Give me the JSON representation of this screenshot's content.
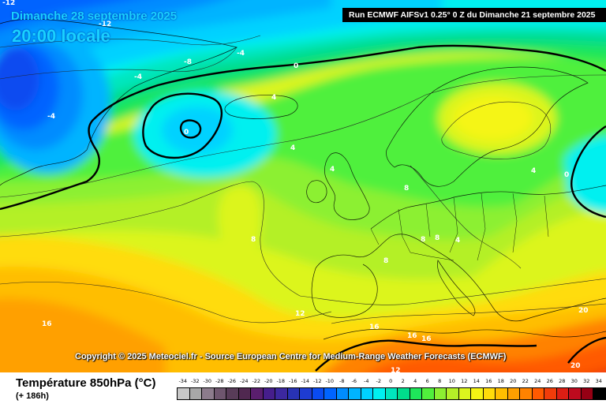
{
  "header": {
    "date": "Dimanche 28 septembre 2025",
    "time": "20:00 locale",
    "run": "Run ECMWF AIFSv1 0.25° 0 Z du Dimanche 21 septembre 2025"
  },
  "copyright": "Copyright © 2025 Meteociel.fr - Source European Centre for Medium-Range Weather Forecasts (ECMWF)",
  "footer": {
    "title": "Température 850hPa (°C)",
    "subtitle": "(+ 186h)"
  },
  "colors": {
    "title_text": "#19d0ff",
    "run_box": "#000000",
    "isotherm_0": "#000000"
  },
  "isotherm_labels": [
    "-12",
    "-12",
    "-8",
    "-4",
    "0",
    "-4",
    "0",
    "-4",
    "4",
    "4",
    "4",
    "8",
    "8",
    "8",
    "8",
    "4",
    "4",
    "0",
    "8",
    "12",
    "16",
    "16",
    "16",
    "16",
    "20",
    "20",
    "12"
  ],
  "legend": {
    "values": [
      "-34",
      "-32",
      "-30",
      "-28",
      "-26",
      "-24",
      "-22",
      "-20",
      "-18",
      "-16",
      "-14",
      "-12",
      "-10",
      "-8",
      "-6",
      "-4",
      "-2",
      "0",
      "2",
      "4",
      "6",
      "8",
      "10",
      "12",
      "14",
      "16",
      "18",
      "20",
      "22",
      "24",
      "26",
      "28",
      "30",
      "32",
      "34"
    ],
    "colors": [
      "#c8c8c8",
      "#a8a8a8",
      "#8c7c8c",
      "#6e566e",
      "#583c58",
      "#502850",
      "#5a1e6e",
      "#461e8c",
      "#3c28a0",
      "#2832b4",
      "#1e3cd2",
      "#0a4bf0",
      "#0064ff",
      "#008cff",
      "#00b4ff",
      "#00d2ff",
      "#00f0f0",
      "#00e6be",
      "#00dc8c",
      "#1ee65a",
      "#50f03c",
      "#8cf032",
      "#b4f028",
      "#dcf51e",
      "#f5f514",
      "#ffdc0a",
      "#ffbe00",
      "#ffa000",
      "#ff8200",
      "#ff5a00",
      "#f03c0a",
      "#dc1e14",
      "#be0a1e",
      "#960014",
      "#000000"
    ]
  }
}
